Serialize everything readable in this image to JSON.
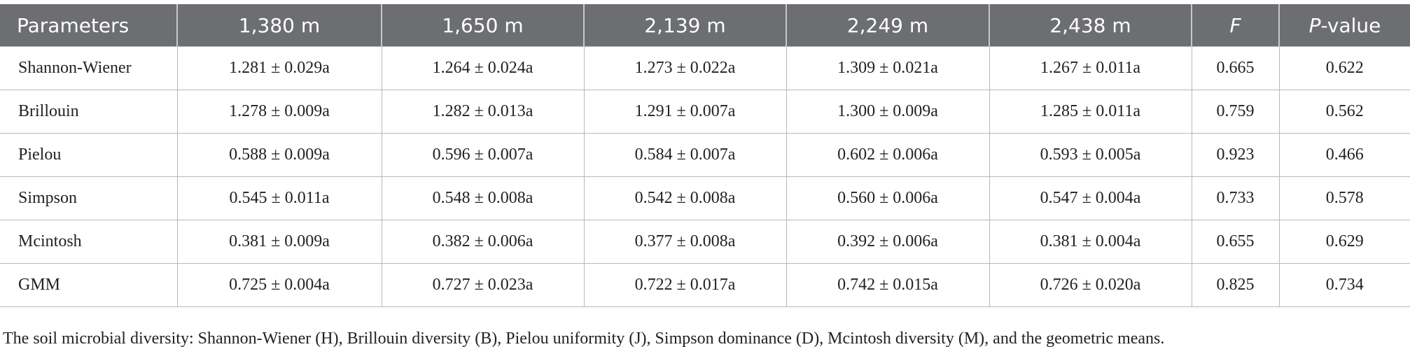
{
  "table": {
    "header": [
      "Parameters",
      "1,380 m",
      "1,650 m",
      "2,139 m",
      "2,249 m",
      "2,438 m",
      "F",
      [
        "P",
        "-value"
      ]
    ],
    "rows": [
      [
        "Shannon-Wiener",
        "1.281 ± 0.029a",
        "1.264 ± 0.024a",
        "1.273 ± 0.022a",
        "1.309 ± 0.021a",
        "1.267 ± 0.011a",
        "0.665",
        "0.622"
      ],
      [
        "Brillouin",
        "1.278 ± 0.009a",
        "1.282 ± 0.013a",
        "1.291 ± 0.007a",
        "1.300 ± 0.009a",
        "1.285 ± 0.011a",
        "0.759",
        "0.562"
      ],
      [
        "Pielou",
        "0.588 ± 0.009a",
        "0.596 ± 0.007a",
        "0.584 ± 0.007a",
        "0.602 ± 0.006a",
        "0.593 ± 0.005a",
        "0.923",
        "0.466"
      ],
      [
        "Simpson",
        "0.545 ± 0.011a",
        "0.548 ± 0.008a",
        "0.542 ± 0.008a",
        "0.560 ± 0.006a",
        "0.547 ± 0.004a",
        "0.733",
        "0.578"
      ],
      [
        "Mcintosh",
        "0.381 ± 0.009a",
        "0.382 ± 0.006a",
        "0.377 ± 0.008a",
        "0.392 ± 0.006a",
        "0.381 ± 0.004a",
        "0.655",
        "0.629"
      ],
      [
        "GMM",
        "0.725 ± 0.004a",
        "0.727 ± 0.023a",
        "0.722 ± 0.017a",
        "0.742 ± 0.015a",
        "0.726 ± 0.020a",
        "0.825",
        "0.734"
      ]
    ],
    "footnote": "The soil microbial diversity: Shannon-Wiener (H), Brillouin diversity (B), Pielou uniformity (J), Simpson dominance (D), Mcintosh diversity (M), and the geometric means."
  }
}
